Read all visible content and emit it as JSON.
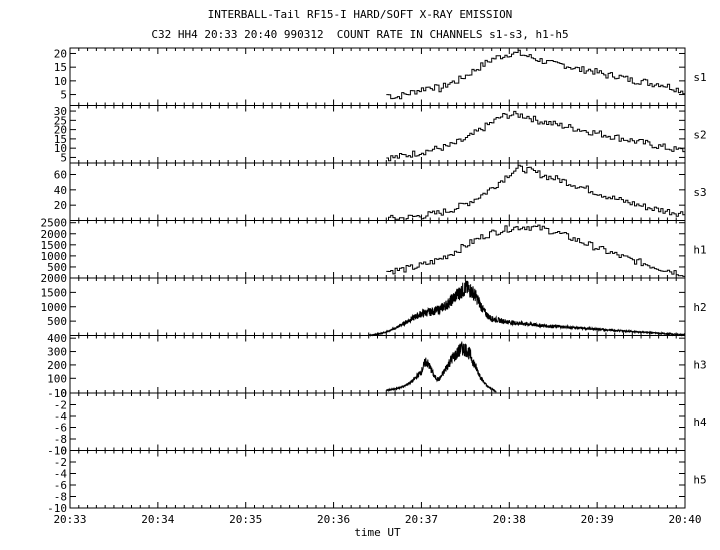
{
  "header": {
    "title": "INTERBALL-Tail RF15-I HARD/SOFT X-RAY EMISSION",
    "subtitle": "C32 HH4 20:33 20:40 990312  COUNT RATE IN CHANNELS s1-s3, h1-h5"
  },
  "chart_data": {
    "type": "line",
    "xlabel": "time UT",
    "x_ticks": [
      "20:33",
      "20:34",
      "20:35",
      "20:36",
      "20:37",
      "20:38",
      "20:39",
      "20:40"
    ],
    "x_range_minutes": [
      0,
      7
    ],
    "panels": [
      {
        "name": "s1",
        "ylim": [
          1,
          22
        ],
        "yticks": [
          5,
          10,
          15,
          20
        ],
        "style": "step",
        "points": [
          [
            3.6,
            5
          ],
          [
            3.7,
            4
          ],
          [
            3.8,
            5
          ],
          [
            3.9,
            6
          ],
          [
            4.0,
            7
          ],
          [
            4.1,
            8
          ],
          [
            4.2,
            7
          ],
          [
            4.3,
            9
          ],
          [
            4.4,
            10
          ],
          [
            4.5,
            12
          ],
          [
            4.6,
            14
          ],
          [
            4.7,
            16
          ],
          [
            4.8,
            18
          ],
          [
            4.9,
            19
          ],
          [
            5.0,
            20
          ],
          [
            5.1,
            20
          ],
          [
            5.2,
            19
          ],
          [
            5.3,
            18
          ],
          [
            5.4,
            17
          ],
          [
            5.5,
            16
          ],
          [
            5.6,
            16
          ],
          [
            5.7,
            15
          ],
          [
            5.8,
            14
          ],
          [
            5.9,
            14
          ],
          [
            6.0,
            13
          ],
          [
            6.1,
            12
          ],
          [
            6.2,
            12
          ],
          [
            6.3,
            11
          ],
          [
            6.4,
            10
          ],
          [
            6.5,
            10
          ],
          [
            6.6,
            9
          ],
          [
            6.7,
            9
          ],
          [
            6.8,
            8
          ],
          [
            6.9,
            7
          ],
          [
            7.0,
            6
          ]
        ]
      },
      {
        "name": "s2",
        "ylim": [
          2,
          33
        ],
        "yticks": [
          5,
          10,
          15,
          20,
          25,
          30
        ],
        "style": "step",
        "points": [
          [
            3.6,
            5
          ],
          [
            3.7,
            5
          ],
          [
            3.8,
            6
          ],
          [
            3.9,
            7
          ],
          [
            4.0,
            8
          ],
          [
            4.1,
            9
          ],
          [
            4.2,
            10
          ],
          [
            4.3,
            11
          ],
          [
            4.4,
            13
          ],
          [
            4.5,
            15
          ],
          [
            4.6,
            18
          ],
          [
            4.7,
            21
          ],
          [
            4.8,
            24
          ],
          [
            4.9,
            27
          ],
          [
            5.0,
            28
          ],
          [
            5.1,
            28
          ],
          [
            5.2,
            27
          ],
          [
            5.3,
            25
          ],
          [
            5.4,
            24
          ],
          [
            5.5,
            23
          ],
          [
            5.6,
            22
          ],
          [
            5.7,
            21
          ],
          [
            5.8,
            20
          ],
          [
            5.9,
            19
          ],
          [
            6.0,
            18
          ],
          [
            6.1,
            17
          ],
          [
            6.2,
            16
          ],
          [
            6.3,
            15
          ],
          [
            6.4,
            14
          ],
          [
            6.5,
            13
          ],
          [
            6.6,
            12
          ],
          [
            6.7,
            11
          ],
          [
            6.8,
            10
          ],
          [
            6.9,
            9
          ],
          [
            7.0,
            9
          ]
        ]
      },
      {
        "name": "s3",
        "ylim": [
          0,
          75
        ],
        "yticks": [
          20,
          40,
          60
        ],
        "style": "step",
        "points": [
          [
            3.6,
            2
          ],
          [
            3.7,
            3
          ],
          [
            3.8,
            3
          ],
          [
            3.9,
            5
          ],
          [
            4.0,
            6
          ],
          [
            4.1,
            8
          ],
          [
            4.2,
            10
          ],
          [
            4.3,
            13
          ],
          [
            4.4,
            17
          ],
          [
            4.5,
            22
          ],
          [
            4.6,
            28
          ],
          [
            4.7,
            35
          ],
          [
            4.8,
            43
          ],
          [
            4.9,
            52
          ],
          [
            5.0,
            62
          ],
          [
            5.1,
            68
          ],
          [
            5.2,
            66
          ],
          [
            5.3,
            62
          ],
          [
            5.4,
            58
          ],
          [
            5.5,
            55
          ],
          [
            5.6,
            52
          ],
          [
            5.7,
            48
          ],
          [
            5.8,
            44
          ],
          [
            5.9,
            40
          ],
          [
            6.0,
            36
          ],
          [
            6.1,
            32
          ],
          [
            6.2,
            28
          ],
          [
            6.3,
            25
          ],
          [
            6.4,
            22
          ],
          [
            6.5,
            19
          ],
          [
            6.6,
            16
          ],
          [
            6.7,
            14
          ],
          [
            6.8,
            12
          ],
          [
            6.9,
            10
          ],
          [
            7.0,
            9
          ]
        ]
      },
      {
        "name": "h1",
        "ylim": [
          0,
          2600
        ],
        "yticks": [
          500,
          1000,
          1500,
          2000,
          2500
        ],
        "style": "step",
        "points": [
          [
            3.6,
            300
          ],
          [
            3.7,
            350
          ],
          [
            3.8,
            400
          ],
          [
            3.9,
            480
          ],
          [
            4.0,
            580
          ],
          [
            4.1,
            700
          ],
          [
            4.2,
            860
          ],
          [
            4.3,
            1050
          ],
          [
            4.4,
            1250
          ],
          [
            4.5,
            1480
          ],
          [
            4.6,
            1700
          ],
          [
            4.7,
            1900
          ],
          [
            4.8,
            2050
          ],
          [
            4.9,
            2150
          ],
          [
            5.0,
            2250
          ],
          [
            5.1,
            2300
          ],
          [
            5.2,
            2320
          ],
          [
            5.3,
            2270
          ],
          [
            5.4,
            2200
          ],
          [
            5.5,
            2090
          ],
          [
            5.6,
            1950
          ],
          [
            5.7,
            1800
          ],
          [
            5.8,
            1650
          ],
          [
            5.9,
            1500
          ],
          [
            6.0,
            1350
          ],
          [
            6.1,
            1200
          ],
          [
            6.2,
            1060
          ],
          [
            6.3,
            920
          ],
          [
            6.4,
            800
          ],
          [
            6.5,
            680
          ],
          [
            6.6,
            560
          ],
          [
            6.7,
            450
          ],
          [
            6.8,
            350
          ],
          [
            6.9,
            250
          ],
          [
            7.0,
            180
          ]
        ]
      },
      {
        "name": "h2",
        "ylim": [
          0,
          2000
        ],
        "yticks": [
          500,
          1000,
          1500,
          2000
        ],
        "style": "noisy",
        "points": [
          [
            3.4,
            0
          ],
          [
            3.5,
            40
          ],
          [
            3.6,
            120
          ],
          [
            3.7,
            250
          ],
          [
            3.8,
            420
          ],
          [
            3.9,
            600
          ],
          [
            4.0,
            760
          ],
          [
            4.1,
            820
          ],
          [
            4.2,
            900
          ],
          [
            4.3,
            1100
          ],
          [
            4.4,
            1400
          ],
          [
            4.5,
            1650
          ],
          [
            4.55,
            1600
          ],
          [
            4.6,
            1450
          ],
          [
            4.65,
            1200
          ],
          [
            4.7,
            900
          ],
          [
            4.75,
            700
          ],
          [
            4.8,
            580
          ],
          [
            4.9,
            520
          ],
          [
            5.0,
            460
          ],
          [
            5.2,
            400
          ],
          [
            5.4,
            340
          ],
          [
            5.6,
            300
          ],
          [
            5.8,
            260
          ],
          [
            6.0,
            220
          ],
          [
            6.2,
            180
          ],
          [
            6.4,
            140
          ],
          [
            6.6,
            100
          ],
          [
            6.8,
            60
          ],
          [
            7.0,
            20
          ]
        ]
      },
      {
        "name": "h3",
        "ylim": [
          -10,
          420
        ],
        "yticks": [
          -10,
          100,
          200,
          300,
          400
        ],
        "style": "noisy",
        "points": [
          [
            3.6,
            10
          ],
          [
            3.7,
            20
          ],
          [
            3.8,
            40
          ],
          [
            3.9,
            80
          ],
          [
            4.0,
            150
          ],
          [
            4.05,
            230
          ],
          [
            4.1,
            180
          ],
          [
            4.15,
            110
          ],
          [
            4.2,
            90
          ],
          [
            4.25,
            140
          ],
          [
            4.3,
            200
          ],
          [
            4.35,
            250
          ],
          [
            4.4,
            280
          ],
          [
            4.45,
            320
          ],
          [
            4.5,
            320
          ],
          [
            4.55,
            280
          ],
          [
            4.6,
            210
          ],
          [
            4.65,
            140
          ],
          [
            4.7,
            80
          ],
          [
            4.75,
            40
          ],
          [
            4.8,
            20
          ],
          [
            4.85,
            0
          ]
        ]
      },
      {
        "name": "h4",
        "ylim": [
          -10,
          0
        ],
        "yticks": [
          -10,
          -8,
          -6,
          -4,
          -2,
          0
        ],
        "style": "empty",
        "points": []
      },
      {
        "name": "h5",
        "ylim": [
          -10,
          0
        ],
        "yticks": [
          -10,
          -8,
          -6,
          -4,
          -2,
          0
        ],
        "style": "empty",
        "points": []
      }
    ]
  }
}
